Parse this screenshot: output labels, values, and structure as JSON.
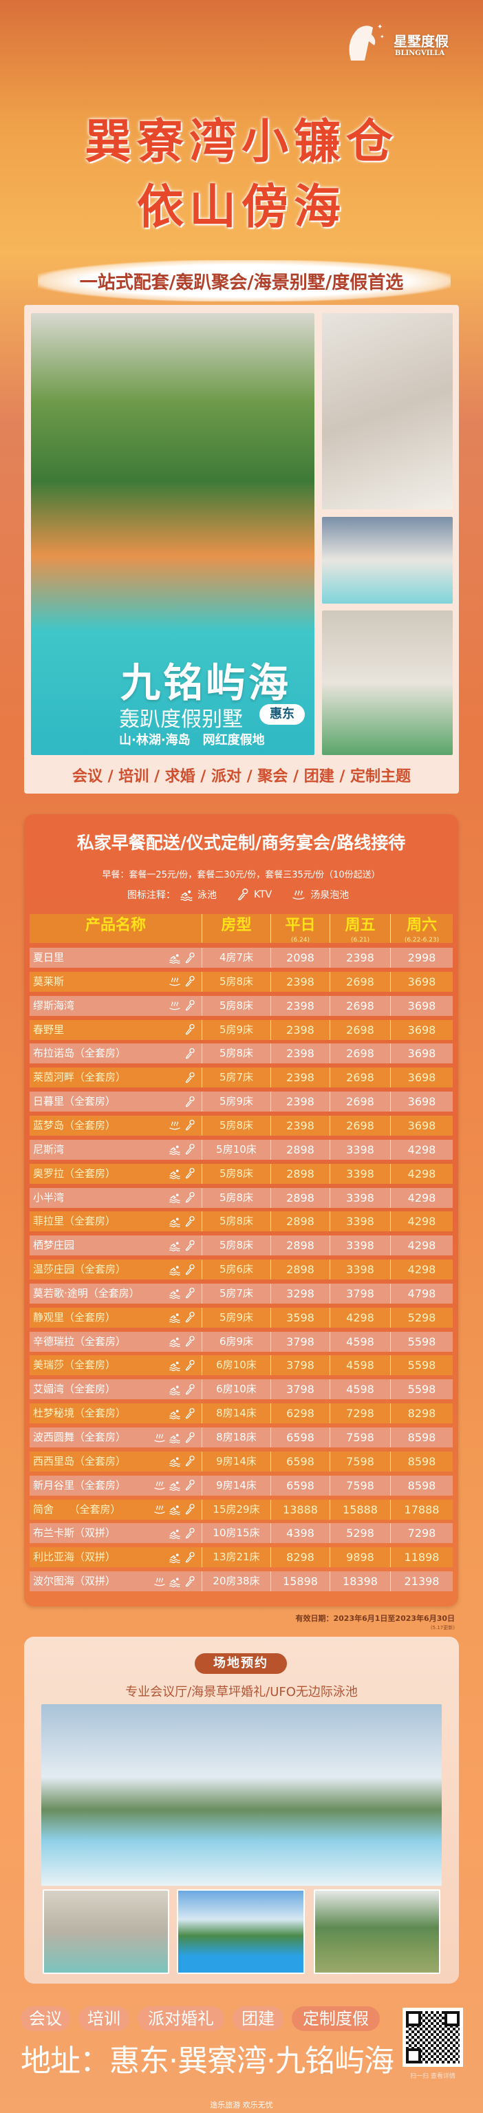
{
  "brand": {
    "name_cn": "星墅度假",
    "name_en": "BLINGVILLA"
  },
  "hero": {
    "line1": "巽寮湾小镰仓",
    "line2": "依山傍海",
    "tagline": "一站式配套/轰趴聚会/海景别墅/度假首选"
  },
  "gallery": {
    "title": "九铭屿海",
    "subtitle": "轰趴度假别墅",
    "region_badge": "惠东",
    "slogan": "山·林湖·海岛　网红度假地",
    "services": "会议 / 培训 / 求婚 / 派对 / 聚会 / 团建 / 定制主题"
  },
  "pricing": {
    "title": "私家早餐配送/仪式定制/商务宴会/路线接待",
    "breakfast": "早餐：套餐一25元/份，套餐二30元/份，套餐三35元/份（10份起送）",
    "legend": {
      "label": "图标注释：",
      "swim": "泳池",
      "ktv": "KTV",
      "spring": "汤泉泡池"
    },
    "headers": {
      "name": "产品名称",
      "room": "房型",
      "weekday": "平日",
      "weekday_date": "(6.24)",
      "friday": "周五",
      "friday_date": "(6.21)",
      "saturday": "周六",
      "saturday_date": "(6.22-6.23)"
    },
    "rows": [
      {
        "name": "夏日里",
        "icons": [
          "swim",
          "ktv"
        ],
        "room": "4房7床",
        "weekday": "2098",
        "friday": "2398",
        "saturday": "2998"
      },
      {
        "name": "莫莱斯",
        "icons": [
          "spring",
          "ktv"
        ],
        "room": "5房8床",
        "weekday": "2398",
        "friday": "2698",
        "saturday": "3698"
      },
      {
        "name": "缪斯海湾",
        "icons": [
          "spring",
          "ktv"
        ],
        "room": "5房8床",
        "weekday": "2398",
        "friday": "2698",
        "saturday": "3698"
      },
      {
        "name": "春野里",
        "icons": [
          "ktv"
        ],
        "room": "5房9床",
        "weekday": "2398",
        "friday": "2698",
        "saturday": "3698"
      },
      {
        "name": "布拉诺岛（全套房）",
        "icons": [
          "ktv"
        ],
        "room": "5房8床",
        "weekday": "2398",
        "friday": "2698",
        "saturday": "3698"
      },
      {
        "name": "莱茵河畔（全套房）",
        "icons": [
          "ktv"
        ],
        "room": "5房7床",
        "weekday": "2398",
        "friday": "2698",
        "saturday": "3698"
      },
      {
        "name": "日暮里（全套房）",
        "icons": [
          "ktv"
        ],
        "room": "5房9床",
        "weekday": "2398",
        "friday": "2698",
        "saturday": "3698"
      },
      {
        "name": "蓝梦岛（全套房）",
        "icons": [
          "spring",
          "ktv"
        ],
        "room": "5房8床",
        "weekday": "2398",
        "friday": "2698",
        "saturday": "3698"
      },
      {
        "name": "尼斯湾",
        "icons": [
          "swim",
          "ktv"
        ],
        "room": "5房10床",
        "weekday": "2898",
        "friday": "3398",
        "saturday": "4298"
      },
      {
        "name": "奥罗拉（全套房）",
        "icons": [
          "swim",
          "ktv"
        ],
        "room": "5房8床",
        "weekday": "2898",
        "friday": "3398",
        "saturday": "4298"
      },
      {
        "name": "小半湾",
        "icons": [
          "swim",
          "ktv"
        ],
        "room": "5房8床",
        "weekday": "2898",
        "friday": "3398",
        "saturday": "4298"
      },
      {
        "name": "菲拉里（全套房）",
        "icons": [
          "swim",
          "ktv"
        ],
        "room": "5房8床",
        "weekday": "2898",
        "friday": "3398",
        "saturday": "4298"
      },
      {
        "name": "栖梦庄园",
        "icons": [
          "swim",
          "ktv"
        ],
        "room": "5房8床",
        "weekday": "2898",
        "friday": "3398",
        "saturday": "4298"
      },
      {
        "name": "温莎庄园（全套房）",
        "icons": [
          "swim",
          "ktv"
        ],
        "room": "5房6床",
        "weekday": "2898",
        "friday": "3398",
        "saturday": "4298"
      },
      {
        "name": "莫若歌·途明（全套房）",
        "icons": [
          "swim",
          "ktv"
        ],
        "room": "5房7床",
        "weekday": "3298",
        "friday": "3798",
        "saturday": "4798"
      },
      {
        "name": "静观里（全套房）",
        "icons": [
          "swim",
          "ktv"
        ],
        "room": "5房9床",
        "weekday": "3598",
        "friday": "4298",
        "saturday": "5298"
      },
      {
        "name": "辛德瑞拉（全套房）",
        "icons": [
          "swim",
          "ktv"
        ],
        "room": "6房9床",
        "weekday": "3798",
        "friday": "4598",
        "saturday": "5598"
      },
      {
        "name": "美瑞莎（全套房）",
        "icons": [
          "swim",
          "ktv"
        ],
        "room": "6房10床",
        "weekday": "3798",
        "friday": "4598",
        "saturday": "5598"
      },
      {
        "name": "艾媚湾（全套房）",
        "icons": [
          "swim",
          "ktv"
        ],
        "room": "6房10床",
        "weekday": "3798",
        "friday": "4598",
        "saturday": "5598"
      },
      {
        "name": "杜梦秘境（全套房）",
        "icons": [
          "swim",
          "ktv"
        ],
        "room": "8房14床",
        "weekday": "6298",
        "friday": "7298",
        "saturday": "8298"
      },
      {
        "name": "波西圆舞（全套房）",
        "icons": [
          "spring",
          "swim",
          "ktv"
        ],
        "room": "8房18床",
        "weekday": "6598",
        "friday": "7598",
        "saturday": "8598"
      },
      {
        "name": "西西里岛（全套房）",
        "icons": [
          "swim",
          "ktv"
        ],
        "room": "9房14床",
        "weekday": "6598",
        "friday": "7598",
        "saturday": "8598"
      },
      {
        "name": "新月谷里（全套房）",
        "icons": [
          "spring",
          "swim",
          "ktv"
        ],
        "room": "9房14床",
        "weekday": "6598",
        "friday": "7598",
        "saturday": "8598"
      },
      {
        "name": "简舍　　（全套房）",
        "icons": [
          "spring",
          "swim",
          "ktv"
        ],
        "room": "15房29床",
        "weekday": "13888",
        "friday": "15888",
        "saturday": "17888"
      },
      {
        "name": "布兰卡斯（双拼）",
        "icons": [
          "swim",
          "ktv"
        ],
        "room": "10房15床",
        "weekday": "4398",
        "friday": "5298",
        "saturday": "7298"
      },
      {
        "name": "利比亚海（双拼）",
        "icons": [
          "swim",
          "ktv"
        ],
        "room": "13房21床",
        "weekday": "8298",
        "friday": "9898",
        "saturday": "11898"
      },
      {
        "name": "波尔图海（双拼）",
        "icons": [
          "spring",
          "swim",
          "ktv"
        ],
        "room": "20房38床",
        "weekday": "15898",
        "friday": "18398",
        "saturday": "21398"
      }
    ],
    "validity": "有效日期：2023年6月1日至2023年6月30日",
    "updated": "(5.17更新)"
  },
  "venue": {
    "badge": "场地预约",
    "subtitle": "专业会议厅/海景草坪婚礼/UFO无边际泳池"
  },
  "footer": {
    "tags": [
      "会议",
      "培训",
      "派对婚礼",
      "团建",
      "定制度假"
    ],
    "address": "地址：惠东·巽寮湾·九铭屿海",
    "qr_caption": "扫一扫 查看详情",
    "slogan": "途乐旅游 欢乐无忧"
  },
  "colors": {
    "title_red": "#e8482a",
    "header_yellow": "#ffe21a",
    "row_orange": "#eb8a30",
    "row_pink": "#e99a7e",
    "badge_brown": "#b8532c"
  }
}
